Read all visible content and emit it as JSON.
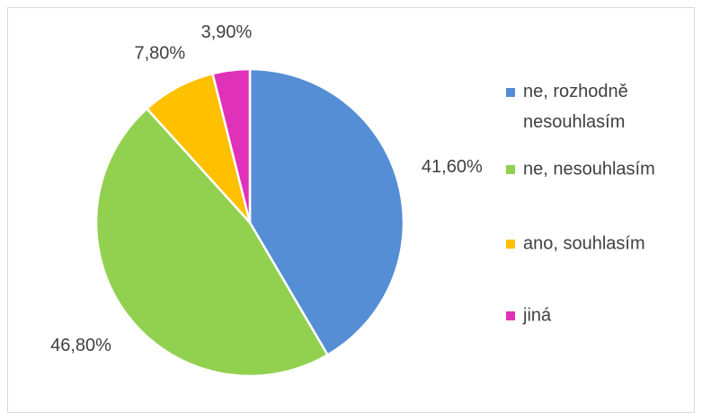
{
  "chart_data": {
    "type": "pie",
    "categories": [
      "ne, rozhodně nesouhlasím",
      "ne, nesouhlasím",
      "ano, souhlasím",
      "jiná"
    ],
    "values": [
      41.6,
      46.8,
      7.8,
      3.9
    ],
    "value_labels": [
      "41,60%",
      "46,80%",
      "7,80%",
      "3,90%"
    ],
    "colors": [
      "#558ed5",
      "#92d050",
      "#ffc000",
      "#e032b8"
    ],
    "legend": "right"
  }
}
